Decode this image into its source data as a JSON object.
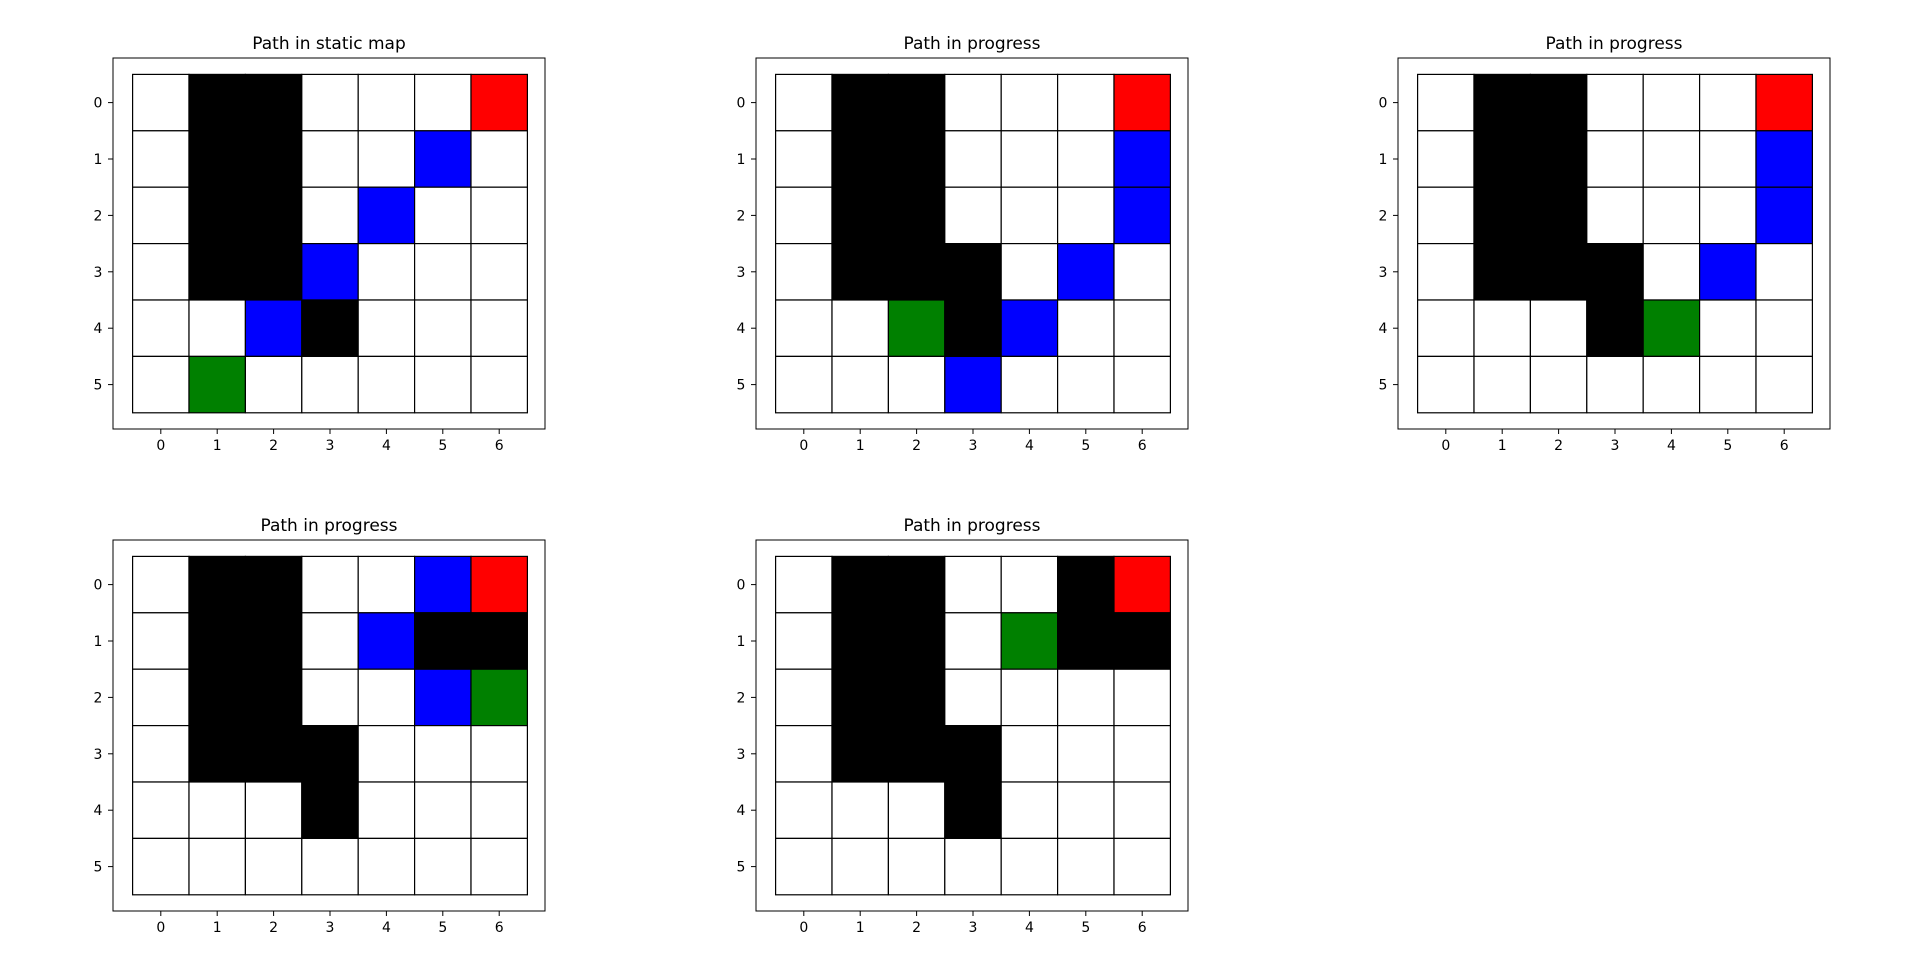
{
  "chart_data": [
    {
      "type": "heatmap",
      "title": "Path in static map",
      "rows": 6,
      "cols": 7,
      "x_ticks": [
        "0",
        "1",
        "2",
        "3",
        "4",
        "5",
        "6"
      ],
      "y_ticks": [
        "0",
        "1",
        "2",
        "3",
        "4",
        "5"
      ],
      "obstacle_cells": [
        [
          0,
          1
        ],
        [
          0,
          2
        ],
        [
          1,
          1
        ],
        [
          1,
          2
        ],
        [
          2,
          1
        ],
        [
          2,
          2
        ],
        [
          3,
          1
        ],
        [
          3,
          2
        ],
        [
          4,
          3
        ]
      ],
      "path_cells": [
        [
          1,
          5
        ],
        [
          2,
          4
        ],
        [
          3,
          3
        ],
        [
          4,
          2
        ]
      ],
      "start_cell": [
        5,
        1
      ],
      "goal_cell": [
        0,
        6
      ]
    },
    {
      "type": "heatmap",
      "title": "Path in progress",
      "rows": 6,
      "cols": 7,
      "x_ticks": [
        "0",
        "1",
        "2",
        "3",
        "4",
        "5",
        "6"
      ],
      "y_ticks": [
        "0",
        "1",
        "2",
        "3",
        "4",
        "5"
      ],
      "obstacle_cells": [
        [
          0,
          1
        ],
        [
          0,
          2
        ],
        [
          1,
          1
        ],
        [
          1,
          2
        ],
        [
          2,
          1
        ],
        [
          2,
          2
        ],
        [
          3,
          1
        ],
        [
          3,
          2
        ],
        [
          3,
          3
        ],
        [
          4,
          3
        ]
      ],
      "path_cells": [
        [
          1,
          6
        ],
        [
          2,
          6
        ],
        [
          3,
          5
        ],
        [
          4,
          4
        ],
        [
          5,
          3
        ]
      ],
      "start_cell": [
        4,
        2
      ],
      "goal_cell": [
        0,
        6
      ]
    },
    {
      "type": "heatmap",
      "title": "Path in progress",
      "rows": 6,
      "cols": 7,
      "x_ticks": [
        "0",
        "1",
        "2",
        "3",
        "4",
        "5",
        "6"
      ],
      "y_ticks": [
        "0",
        "1",
        "2",
        "3",
        "4",
        "5"
      ],
      "obstacle_cells": [
        [
          0,
          1
        ],
        [
          0,
          2
        ],
        [
          1,
          1
        ],
        [
          1,
          2
        ],
        [
          2,
          1
        ],
        [
          2,
          2
        ],
        [
          3,
          1
        ],
        [
          3,
          2
        ],
        [
          3,
          3
        ],
        [
          4,
          3
        ]
      ],
      "path_cells": [
        [
          1,
          6
        ],
        [
          2,
          6
        ],
        [
          3,
          5
        ]
      ],
      "start_cell": [
        4,
        4
      ],
      "goal_cell": [
        0,
        6
      ]
    },
    {
      "type": "heatmap",
      "title": "Path in progress",
      "rows": 6,
      "cols": 7,
      "x_ticks": [
        "0",
        "1",
        "2",
        "3",
        "4",
        "5",
        "6"
      ],
      "y_ticks": [
        "0",
        "1",
        "2",
        "3",
        "4",
        "5"
      ],
      "obstacle_cells": [
        [
          0,
          1
        ],
        [
          0,
          2
        ],
        [
          1,
          1
        ],
        [
          1,
          2
        ],
        [
          1,
          5
        ],
        [
          1,
          6
        ],
        [
          2,
          1
        ],
        [
          2,
          2
        ],
        [
          3,
          1
        ],
        [
          3,
          2
        ],
        [
          3,
          3
        ],
        [
          4,
          3
        ]
      ],
      "path_cells": [
        [
          0,
          5
        ],
        [
          1,
          4
        ],
        [
          2,
          5
        ]
      ],
      "start_cell": [
        2,
        6
      ],
      "goal_cell": [
        0,
        6
      ]
    },
    {
      "type": "heatmap",
      "title": "Path in progress",
      "rows": 6,
      "cols": 7,
      "x_ticks": [
        "0",
        "1",
        "2",
        "3",
        "4",
        "5",
        "6"
      ],
      "y_ticks": [
        "0",
        "1",
        "2",
        "3",
        "4",
        "5"
      ],
      "obstacle_cells": [
        [
          0,
          1
        ],
        [
          0,
          2
        ],
        [
          0,
          5
        ],
        [
          1,
          1
        ],
        [
          1,
          2
        ],
        [
          1,
          5
        ],
        [
          1,
          6
        ],
        [
          2,
          1
        ],
        [
          2,
          2
        ],
        [
          3,
          1
        ],
        [
          3,
          2
        ],
        [
          3,
          3
        ],
        [
          4,
          3
        ]
      ],
      "path_cells": [],
      "start_cell": [
        1,
        4
      ],
      "goal_cell": [
        0,
        6
      ]
    }
  ],
  "colors": {
    "free": "#ffffff",
    "obstacle": "#000000",
    "path": "#0000ff",
    "start": "#008000",
    "goal": "#ff0000",
    "grid_line": "#000000",
    "frame": "#000000"
  }
}
